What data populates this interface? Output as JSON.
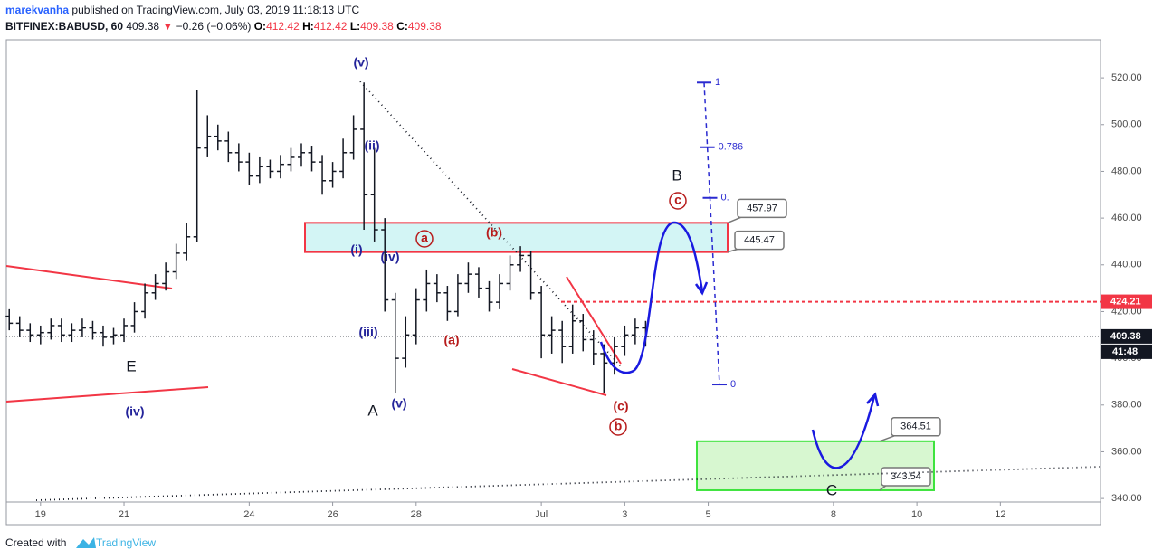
{
  "header": {
    "author": "marekvanha",
    "published": "published on TradingView.com, July 03, 2019 11:18:13 UTC",
    "symbol": "BITFINEX:BABUSD, 60",
    "price": "409.38",
    "arrow": "▼",
    "change": "−0.26 (−0.06%)",
    "ohlc": [
      {
        "key": "O:",
        "value": "412.42"
      },
      {
        "key": "H:",
        "value": "412.42"
      },
      {
        "key": "L:",
        "value": "409.38"
      },
      {
        "key": "C:",
        "value": "409.38"
      }
    ]
  },
  "footer": {
    "text": "Created with",
    "brand": "TradingView"
  },
  "chart_data": {
    "type": "ohlc",
    "color": "#131722",
    "x": [
      18.25,
      18.5,
      18.75,
      19,
      19.25,
      19.5,
      19.75,
      20,
      20.25,
      20.5,
      20.75,
      21,
      21.25,
      21.5,
      21.75,
      22,
      22.25,
      22.5,
      22.75,
      23,
      23.25,
      23.5,
      23.75,
      24,
      24.25,
      24.5,
      24.75,
      25,
      25.25,
      25.5,
      25.75,
      26,
      26.25,
      26.5,
      26.75,
      27,
      27.25,
      27.5,
      27.75,
      28,
      28.25,
      28.5,
      28.75,
      29,
      29.25,
      29.5,
      29.75,
      30,
      30.25,
      30.5,
      30.75,
      31,
      31.25,
      31.5,
      31.75,
      32,
      32.25,
      32.5,
      32.75,
      33,
      33.25,
      33.5
    ],
    "open": [
      418,
      415,
      412,
      410,
      411,
      414,
      410,
      412,
      413,
      411,
      409,
      410,
      414,
      420,
      428,
      432,
      437,
      445,
      452,
      490,
      495,
      493,
      488,
      484,
      478,
      482,
      480,
      483,
      486,
      488,
      484,
      476,
      480,
      488,
      498,
      470,
      455,
      425,
      400,
      410,
      425,
      432,
      428,
      420,
      432,
      436,
      430,
      424,
      432,
      440,
      444,
      428,
      410,
      412,
      405,
      416,
      408,
      402,
      398,
      405,
      410,
      413
    ],
    "high": [
      421,
      418,
      415,
      414,
      417,
      417,
      415,
      417,
      416,
      414,
      413,
      417,
      424,
      432,
      436,
      441,
      449,
      458,
      515,
      504,
      500,
      497,
      492,
      488,
      486,
      485,
      487,
      490,
      492,
      491,
      487,
      484,
      494,
      504,
      518,
      490,
      460,
      428,
      418,
      430,
      438,
      436,
      431,
      436,
      441,
      439,
      433,
      436,
      444,
      448,
      446,
      431,
      418,
      416,
      423,
      419,
      412,
      406,
      409,
      414,
      417,
      416
    ],
    "low": [
      412,
      409,
      407,
      406,
      408,
      407,
      407,
      409,
      408,
      405,
      406,
      407,
      411,
      417,
      425,
      429,
      434,
      442,
      450,
      486,
      489,
      484,
      480,
      474,
      475,
      477,
      477,
      480,
      482,
      480,
      470,
      473,
      477,
      485,
      455,
      450,
      420,
      385,
      396,
      406,
      420,
      424,
      416,
      418,
      428,
      426,
      420,
      421,
      429,
      437,
      425,
      400,
      402,
      398,
      402,
      403,
      397,
      385,
      393,
      401,
      406,
      405
    ],
    "close": [
      415,
      412,
      410,
      411,
      414,
      410,
      412,
      413,
      411,
      409,
      410,
      414,
      420,
      428,
      432,
      437,
      445,
      452,
      490,
      495,
      493,
      488,
      484,
      478,
      482,
      480,
      483,
      486,
      488,
      484,
      476,
      480,
      488,
      498,
      470,
      455,
      425,
      400,
      410,
      425,
      432,
      428,
      420,
      432,
      436,
      430,
      424,
      432,
      440,
      444,
      428,
      410,
      412,
      405,
      416,
      408,
      402,
      398,
      405,
      410,
      413,
      409.38
    ],
    "xlim": [
      18.18,
      44.4
    ],
    "xticks": [
      19,
      21,
      24,
      26,
      28,
      {
        "value": 31,
        "label": "Jul"
      },
      {
        "value": 33,
        "label": "3"
      },
      {
        "value": 35,
        "label": "5"
      },
      {
        "value": 38,
        "label": "8"
      },
      {
        "value": 40,
        "label": "10"
      },
      {
        "value": 42,
        "label": "12"
      }
    ],
    "ylim": [
      338.5,
      536.3
    ],
    "yticks": [
      {
        "value": 340,
        "label": "340.00"
      },
      {
        "value": 360,
        "label": "360.00"
      },
      {
        "value": 380,
        "label": "380.00"
      },
      {
        "value": 400,
        "label": "400.00"
      },
      {
        "value": 420,
        "label": "420.00"
      },
      {
        "value": 440,
        "label": "440.00"
      },
      {
        "value": 460,
        "label": "460.00"
      },
      {
        "value": 480,
        "label": "480.00"
      },
      {
        "value": 500,
        "label": "500.00"
      },
      {
        "value": 520,
        "label": "520.00"
      }
    ],
    "zones": [
      {
        "low": 445.47,
        "high": 457.97,
        "fill": "#d3f5f5",
        "stroke": "#f23645"
      },
      {
        "low": 343.54,
        "high": 364.51,
        "fill": "#d7f7d0",
        "stroke": "#3ee33e"
      }
    ],
    "levels": [
      {
        "value": 424.21,
        "color": "#f23645"
      },
      {
        "value": 409.38,
        "color": "#131722"
      }
    ],
    "countdown": "41:48",
    "fib": {
      "low": 388.8,
      "high": 518,
      "color": "#2a2ad0",
      "levels": [
        1,
        0.786,
        {
          "value": 0.618,
          "label": "0."
        },
        0
      ]
    },
    "wave_labels": [
      {
        "text": "(v)",
        "color": "#23239a"
      },
      {
        "text": "(ii)",
        "color": "#23239a"
      },
      {
        "text": "(i)",
        "color": "#23239a"
      },
      {
        "text": "(iv)",
        "color": "#23239a"
      },
      {
        "text": "(iii)",
        "color": "#23239a"
      },
      {
        "text": "(v)",
        "color": "#23239a"
      },
      {
        "text": "(iv)",
        "color": "#23239a"
      },
      {
        "text": "E",
        "color": "#131722"
      },
      {
        "text": "A",
        "color": "#131722"
      },
      {
        "text": "a",
        "color": "#b71c1c"
      },
      {
        "text": "(b)",
        "color": "#b71c1c"
      },
      {
        "text": "(a)",
        "color": "#b71c1c"
      },
      {
        "text": "(c)",
        "color": "#b71c1c"
      },
      {
        "text": "b",
        "color": "#b71c1c"
      },
      {
        "text": "c",
        "color": "#b71c1c"
      },
      {
        "text": "B",
        "color": "#131722"
      },
      {
        "text": "C",
        "color": "#131722"
      }
    ]
  }
}
